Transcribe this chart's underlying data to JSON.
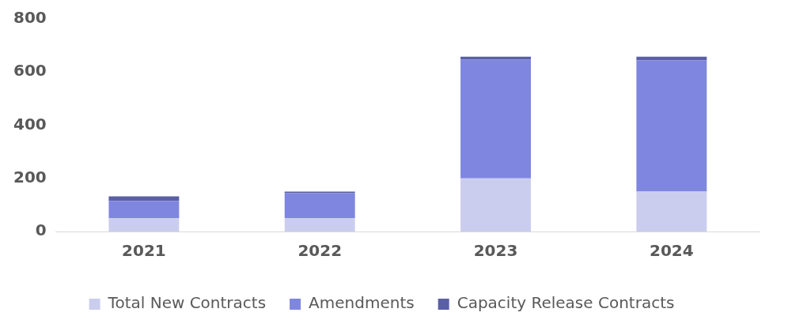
{
  "chart_data": {
    "type": "bar",
    "stacked": true,
    "categories": [
      "2021",
      "2022",
      "2023",
      "2024"
    ],
    "series": [
      {
        "name": "Total New Contracts",
        "color": "#cbcdee",
        "values": [
          50,
          50,
          200,
          150
        ]
      },
      {
        "name": "Amendments",
        "color": "#7f86e0",
        "values": [
          65,
          94,
          447,
          494
        ]
      },
      {
        "name": "Capacity Release Contracts",
        "color": "#5b5fa6",
        "values": [
          17,
          6,
          11,
          14
        ]
      }
    ],
    "ylim": [
      0,
      800
    ],
    "yticks": [
      0,
      200,
      400,
      600,
      800
    ],
    "grid": false,
    "legend": "bottom"
  }
}
